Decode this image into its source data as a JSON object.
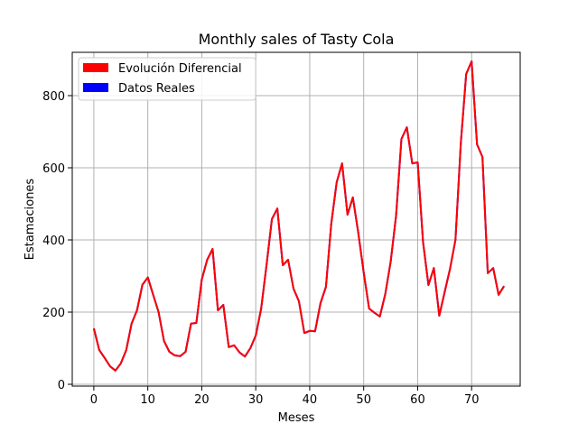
{
  "chart_data": {
    "type": "line",
    "title": "Monthly sales of Tasty Cola",
    "xlabel": "Meses",
    "ylabel": "Estamaciones",
    "xlim": [
      -4,
      79
    ],
    "ylim": [
      -5,
      920
    ],
    "xticks": [
      0,
      10,
      20,
      30,
      40,
      50,
      60,
      70
    ],
    "yticks": [
      0,
      200,
      400,
      600,
      800
    ],
    "grid": true,
    "legend_position": "top-left",
    "series": [
      {
        "name": "Evolución Diferencial",
        "color": "#ff0000",
        "x": [
          0,
          1,
          2,
          3,
          4,
          5,
          6,
          7,
          8,
          9,
          10,
          11,
          12,
          13,
          14,
          15,
          16,
          17,
          18,
          19,
          20,
          21,
          22,
          23,
          24,
          25,
          26,
          27,
          28,
          29,
          30,
          31,
          32,
          33,
          34,
          35,
          36,
          37,
          38,
          39,
          40,
          41,
          42,
          43,
          44,
          45,
          46,
          47,
          48,
          49,
          50,
          51,
          52,
          53,
          54,
          55,
          56,
          57,
          58,
          59,
          60,
          61,
          62,
          63,
          64,
          65,
          66,
          67,
          68,
          69,
          70,
          71,
          72,
          73,
          74,
          75,
          76
        ],
        "values": [
          155,
          95,
          73,
          50,
          38,
          58,
          95,
          168,
          205,
          276,
          296,
          248,
          200,
          120,
          90,
          80,
          78,
          90,
          168,
          170,
          290,
          345,
          375,
          205,
          220,
          103,
          108,
          88,
          77,
          100,
          135,
          210,
          330,
          458,
          487,
          330,
          345,
          265,
          230,
          142,
          148,
          147,
          225,
          270,
          445,
          560,
          612,
          470,
          518,
          420,
          310,
          210,
          198,
          188,
          250,
          340,
          468,
          680,
          712,
          612,
          615,
          395,
          275,
          322,
          190,
          255,
          320,
          400,
          670,
          860,
          895,
          665,
          630,
          308,
          322,
          248,
          272
        ]
      },
      {
        "name": "Datos Reales",
        "color": "#0000ff",
        "x": [
          0,
          1,
          2,
          3,
          4,
          5,
          6,
          7,
          8,
          9,
          10,
          11,
          12,
          13,
          14,
          15,
          16,
          17,
          18,
          19,
          20,
          21,
          22,
          23,
          24,
          25,
          26,
          27,
          28,
          29,
          30,
          31,
          32,
          33,
          34,
          35,
          36,
          37,
          38,
          39,
          40,
          41,
          42,
          43,
          44,
          45,
          46,
          47,
          48,
          49,
          50,
          51,
          52,
          53,
          54,
          55,
          56,
          57,
          58,
          59,
          60,
          61,
          62,
          63,
          64,
          65,
          66,
          67,
          68,
          69,
          70,
          71,
          72,
          73,
          74,
          75,
          76
        ],
        "values": [
          155,
          95,
          73,
          50,
          38,
          58,
          95,
          168,
          205,
          276,
          296,
          248,
          200,
          120,
          90,
          80,
          78,
          90,
          168,
          170,
          290,
          345,
          375,
          205,
          220,
          103,
          108,
          88,
          77,
          100,
          135,
          210,
          330,
          458,
          487,
          330,
          345,
          265,
          230,
          142,
          148,
          147,
          225,
          270,
          445,
          560,
          612,
          470,
          518,
          420,
          310,
          210,
          198,
          188,
          250,
          340,
          468,
          680,
          712,
          612,
          615,
          395,
          275,
          322,
          190,
          255,
          320,
          400,
          670,
          860,
          895,
          665,
          630,
          308,
          322,
          248,
          272
        ]
      }
    ]
  }
}
